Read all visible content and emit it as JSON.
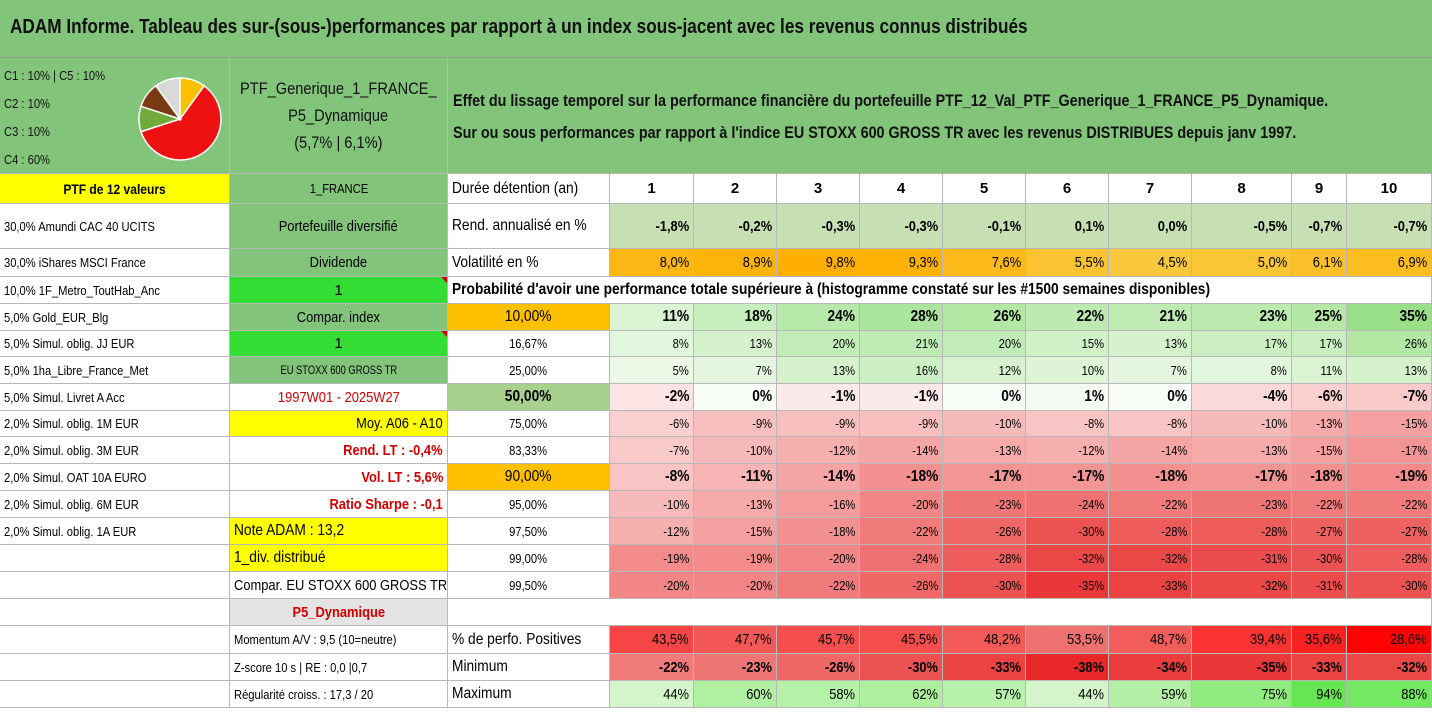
{
  "title": "ADAM Informe. Tableau des sur-(sous-)performances par rapport à un index sous-jacent avec les revenus connus distribués",
  "colors": {
    "header_green": "#82c47a",
    "yellow": "#ffff00",
    "orange": "#ffc000",
    "bright_green": "#33dd33",
    "red_text": "#d10000"
  },
  "pie": {
    "legend": [
      "C1 : 10% | C5 : 10%",
      "C2 : 10%",
      "C3 : 10%",
      "C4 : 60%"
    ],
    "slices": [
      {
        "label": "C4",
        "value": 60,
        "color": "#ee1111"
      },
      {
        "label": "C3",
        "value": 10,
        "color": "#6faa3a"
      },
      {
        "label": "C2",
        "value": 10,
        "color": "#7a3b14"
      },
      {
        "label": "C5",
        "value": 10,
        "color": "#d9d9d9"
      },
      {
        "label": "C1",
        "value": 10,
        "color": "#ffc000"
      }
    ]
  },
  "ptf": {
    "line1": "PTF_Generique_1_FRANCE_",
    "line2": "P5_Dynamique",
    "line3": "(5,7% | 6,1%)"
  },
  "effet": {
    "line1": "Effet du lissage temporel sur la performance financière du portefeuille PTF_12_Val_PTF_Generique_1_FRANCE_P5_Dynamique.",
    "line2": "Sur ou sous performances par rapport à l'indice EU STOXX 600 GROSS TR avec les revenus DISTRIBUES depuis janv 1997."
  },
  "holdings_header": "PTF de 12 valeurs",
  "holdings": [
    "30,0% Amundi CAC 40 UCITS",
    "30,0% iShares MSCI France",
    "10,0% 1F_Metro_ToutHab_Anc",
    "5,0% Gold_EUR_Blg",
    "5,0% Simul. oblig. JJ EUR",
    "5,0% 1ha_Libre_France_Met",
    "5,0% Simul. Livret A Acc",
    "2,0% Simul. oblig. 1M EUR",
    "2,0% Simul. oblig. 3M EUR",
    "2,0% Simul. OAT 10A EURO",
    "2,0% Simul. oblig. 6M EUR",
    "2,0% Simul. oblig. 1A EUR"
  ],
  "info": [
    "1_FRANCE",
    "Portefeuille diversifié",
    "Dividende",
    "1",
    "Compar. index",
    "1",
    "EU STOXX 600 GROSS TR",
    "1997W01 - 2025W27",
    "Moy. A06 - A10",
    "Rend. LT : -0,4%",
    "Vol. LT : 5,6%",
    "Ratio Sharpe : -0,1",
    "Note ADAM : 13,2",
    "1_div. distribué",
    "Compar. EU STOXX 600 GROSS TR",
    "P5_Dynamique",
    "Momentum A/V : 9,5 (10=neutre)",
    "Z-score 10 s | RE : 0,0 |0,7",
    "Régularité croiss. : 17,3 / 20"
  ],
  "table": {
    "duree_label": "Durée détention (an)",
    "years": [
      "1",
      "2",
      "3",
      "4",
      "5",
      "6",
      "7",
      "8",
      "9",
      "10"
    ],
    "rend_label": "Rend. annualisé en %",
    "rend": [
      "-1,8%",
      "-0,2%",
      "-0,3%",
      "-0,3%",
      "-0,1%",
      "0,1%",
      "0,0%",
      "-0,5%",
      "-0,7%",
      "-0,7%"
    ],
    "vol_label": "Volatilité en %",
    "vol": [
      "8,0%",
      "8,9%",
      "9,8%",
      "9,3%",
      "7,6%",
      "5,5%",
      "4,5%",
      "5,0%",
      "6,1%",
      "6,9%"
    ],
    "prob_title": "Probabilité d'avoir une performance totale supérieure à (histogramme constaté sur les #1500 semaines disponibles)",
    "prob_rows": [
      {
        "p": "10,00%",
        "v": [
          "11%",
          "18%",
          "24%",
          "28%",
          "26%",
          "22%",
          "21%",
          "23%",
          "25%",
          "35%"
        ]
      },
      {
        "p": "16,67%",
        "v": [
          "8%",
          "13%",
          "20%",
          "21%",
          "20%",
          "15%",
          "13%",
          "17%",
          "17%",
          "26%"
        ]
      },
      {
        "p": "25,00%",
        "v": [
          "5%",
          "7%",
          "13%",
          "16%",
          "12%",
          "10%",
          "7%",
          "8%",
          "11%",
          "13%"
        ]
      },
      {
        "p": "50,00%",
        "v": [
          "-2%",
          "0%",
          "-1%",
          "-1%",
          "0%",
          "1%",
          "0%",
          "-4%",
          "-6%",
          "-7%"
        ]
      },
      {
        "p": "75,00%",
        "v": [
          "-6%",
          "-9%",
          "-9%",
          "-9%",
          "-10%",
          "-8%",
          "-8%",
          "-10%",
          "-13%",
          "-15%"
        ]
      },
      {
        "p": "83,33%",
        "v": [
          "-7%",
          "-10%",
          "-12%",
          "-14%",
          "-13%",
          "-12%",
          "-14%",
          "-13%",
          "-15%",
          "-17%"
        ]
      },
      {
        "p": "90,00%",
        "v": [
          "-8%",
          "-11%",
          "-14%",
          "-18%",
          "-17%",
          "-17%",
          "-18%",
          "-17%",
          "-18%",
          "-19%"
        ]
      },
      {
        "p": "95,00%",
        "v": [
          "-10%",
          "-13%",
          "-16%",
          "-20%",
          "-23%",
          "-24%",
          "-22%",
          "-23%",
          "-22%",
          "-22%"
        ]
      },
      {
        "p": "97,50%",
        "v": [
          "-12%",
          "-15%",
          "-18%",
          "-22%",
          "-26%",
          "-30%",
          "-28%",
          "-28%",
          "-27%",
          "-27%"
        ]
      },
      {
        "p": "99,00%",
        "v": [
          "-19%",
          "-19%",
          "-20%",
          "-24%",
          "-28%",
          "-32%",
          "-32%",
          "-31%",
          "-30%",
          "-28%"
        ]
      },
      {
        "p": "99,50%",
        "v": [
          "-20%",
          "-20%",
          "-22%",
          "-26%",
          "-30%",
          "-35%",
          "-33%",
          "-32%",
          "-31%",
          "-30%"
        ]
      }
    ],
    "pos_label": "% de perfo. Positives",
    "pos": [
      "43,5%",
      "47,7%",
      "45,7%",
      "45,5%",
      "48,2%",
      "53,5%",
      "48,7%",
      "39,4%",
      "35,6%",
      "28,6%"
    ],
    "min_label": "Minimum",
    "min": [
      "-22%",
      "-23%",
      "-26%",
      "-30%",
      "-33%",
      "-38%",
      "-34%",
      "-35%",
      "-33%",
      "-32%"
    ],
    "max_label": "Maximum",
    "max": [
      "44%",
      "60%",
      "58%",
      "62%",
      "57%",
      "44%",
      "59%",
      "75%",
      "94%",
      "88%"
    ]
  }
}
